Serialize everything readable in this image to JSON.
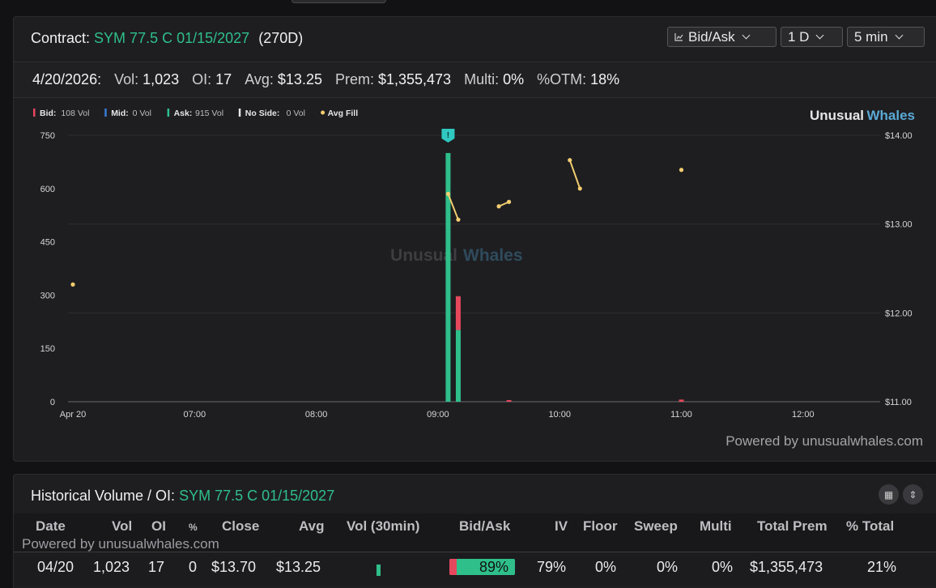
{
  "chart_panel": {
    "contract_label": "Contract:",
    "contract_symbol": "SYM 77.5 C 01/15/2027",
    "dte": "(270D)",
    "controls": {
      "mode": "Bid/Ask",
      "range": "1 D",
      "interval": "5 min"
    },
    "stats": {
      "date": "4/20/2026:",
      "vol_label": "Vol:",
      "vol": "1,023",
      "oi_label": "OI:",
      "oi": "17",
      "avg_label": "Avg:",
      "avg": "$13.25",
      "prem_label": "Prem:",
      "prem": "$1,355,473",
      "multi_label": "Multi:",
      "multi": "0%",
      "otm_label": "%OTM:",
      "otm": "18%"
    },
    "legend": [
      {
        "label": "Bid:",
        "value": "108 Vol",
        "color": "#e5475c",
        "shape": "bar"
      },
      {
        "label": "Mid:",
        "value": "0 Vol",
        "color": "#3a7bd5",
        "shape": "bar"
      },
      {
        "label": "Ask:",
        "value": "915 Vol",
        "color": "#2fbf8a",
        "shape": "bar"
      },
      {
        "label": "No Side:",
        "value": "0 Vol",
        "color": "#e6e6e6",
        "shape": "bar"
      },
      {
        "label": "Avg Fill",
        "value": "",
        "color": "#f3cd6f",
        "shape": "dot"
      }
    ],
    "brand": {
      "part1": "Unusual",
      "part2": "Whales"
    },
    "powered_by": "Powered by unusualwhales.com",
    "marker_icon": "!"
  },
  "chart_data": {
    "type": "bar",
    "x_ticks": [
      "Apr 20",
      "07:00",
      "08:00",
      "09:00",
      "10:00",
      "11:00",
      "12:00"
    ],
    "x_tick_minutes": [
      360,
      420,
      480,
      540,
      600,
      660,
      720
    ],
    "y_left_ticks": [
      "750",
      "600",
      "450",
      "300",
      "150",
      "0"
    ],
    "y_left_range": [
      0,
      750
    ],
    "y_right_ticks": [
      "$14.00",
      "$13.00",
      "$12.00",
      "$11.00"
    ],
    "y_right_range": [
      11,
      14
    ],
    "bars": [
      {
        "time": "09:05",
        "minute": 545,
        "ask": 700,
        "bid": 0
      },
      {
        "time": "09:10",
        "minute": 550,
        "ask": 202,
        "bid": 95
      },
      {
        "time": "09:35",
        "minute": 575,
        "ask": 0,
        "bid": 4
      },
      {
        "time": "11:00",
        "minute": 660,
        "ask": 0,
        "bid": 6
      }
    ],
    "avg_fill_segments": [
      [
        [
          360,
          12.32
        ]
      ],
      [
        [
          545,
          13.34
        ],
        [
          550,
          13.05
        ]
      ],
      [
        [
          570,
          13.2
        ],
        [
          575,
          13.25
        ]
      ],
      [
        [
          605,
          13.72
        ],
        [
          610,
          13.4
        ]
      ],
      [
        [
          660,
          13.61
        ]
      ]
    ],
    "grid": true,
    "legend_position": "top-left"
  },
  "hist_panel": {
    "title_label": "Historical Volume / OI:",
    "title_symbol": "SYM 77.5 C 01/15/2027",
    "powered_by": "Powered by unusualwhales.com",
    "columns": [
      "Date",
      "Vol",
      "OI",
      "%",
      "Close",
      "Avg",
      "Vol (30min)",
      "Bid/Ask",
      "IV",
      "Floor",
      "Sweep",
      "Multi",
      "Total Prem",
      "% Total"
    ],
    "rows": [
      {
        "date": "04/20",
        "vol": "1,023",
        "oi": "17",
        "pct": "0",
        "close": "$13.70",
        "avg": "$13.25",
        "bidask": "89%",
        "bidask_ask_share": 0.89,
        "iv": "79%",
        "floor": "0%",
        "sweep": "0%",
        "multi": "0%",
        "total_prem": "$1,355,473",
        "pct_total": "21%"
      }
    ]
  }
}
